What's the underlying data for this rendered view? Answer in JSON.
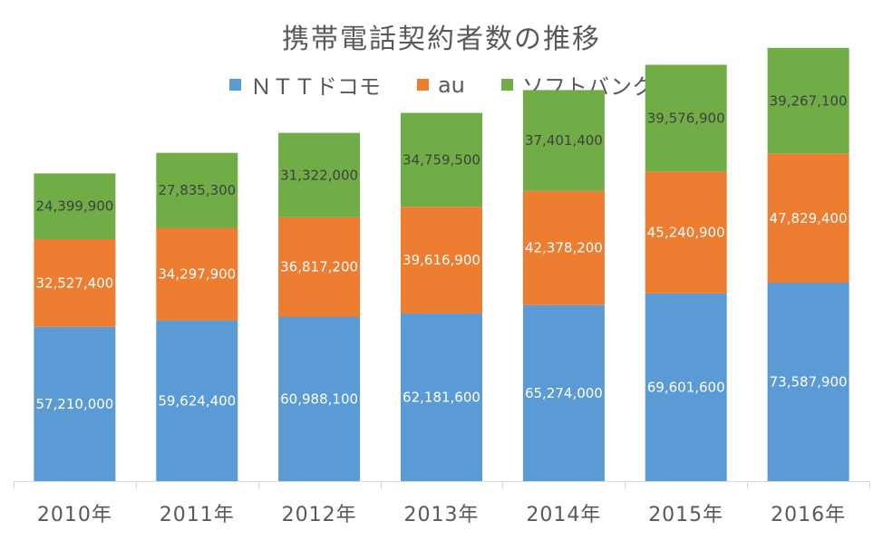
{
  "chart_data": {
    "type": "bar",
    "stacked": true,
    "title": "携帯電話契約者数の推移",
    "categories": [
      "2010年",
      "2011年",
      "2012年",
      "2013年",
      "2014年",
      "2015年",
      "2016年"
    ],
    "series": [
      {
        "name": "ＮＴＴドコモ",
        "color": "#5b9bd5",
        "values": [
          57210000,
          59624400,
          60988100,
          62181600,
          65274000,
          69601600,
          73587900
        ],
        "labels": [
          "57,210,000",
          "59,624,400",
          "60,988,100",
          "62,181,600",
          "65,274,000",
          "69,601,600",
          "73,587,900"
        ]
      },
      {
        "name": "au",
        "color": "#ed7d31",
        "values": [
          32527400,
          34297900,
          36817200,
          39616900,
          42378200,
          45240900,
          47829400
        ],
        "labels": [
          "32,527,400",
          "34,297,900",
          "36,817,200",
          "39,616,900",
          "42,378,200",
          "45,240,900",
          "47,829,400"
        ]
      },
      {
        "name": "ソフトバンク",
        "color": "#70ad47",
        "values": [
          24399900,
          27835300,
          31322000,
          34759500,
          37401400,
          39576900,
          39267100
        ],
        "labels": [
          "24,399,900",
          "27,835,300",
          "31,322,000",
          "34,759,500",
          "37,401,400",
          "39,576,900",
          "39,267,100"
        ]
      }
    ],
    "ylim": [
      0,
      165000000
    ],
    "grid": false,
    "legend": "top"
  }
}
